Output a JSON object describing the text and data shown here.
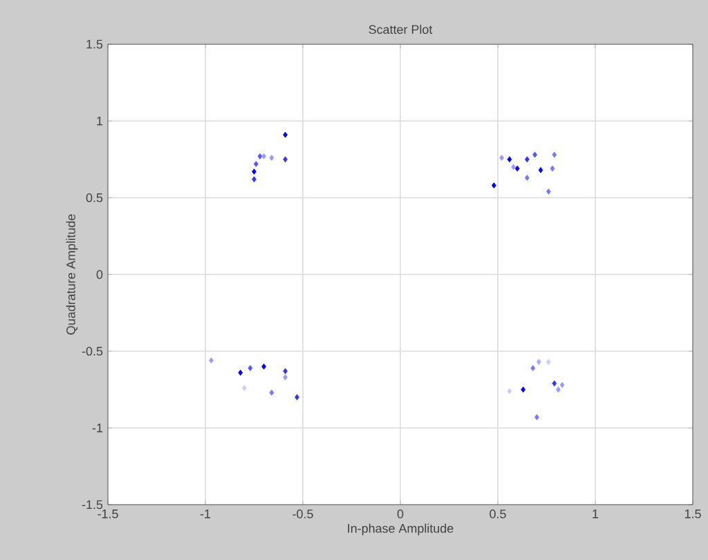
{
  "chart_data": {
    "type": "scatter",
    "title": "Scatter Plot",
    "xlabel": "In-phase Amplitude",
    "ylabel": "Quadrature Amplitude",
    "x": [
      -0.72,
      -0.7,
      -0.66,
      -0.74,
      -0.75,
      -0.75,
      -0.59,
      -0.59,
      0.52,
      0.56,
      0.58,
      0.6,
      0.65,
      0.69,
      0.79,
      0.72,
      0.78,
      0.65,
      0.48,
      0.76,
      -0.97,
      -0.82,
      -0.77,
      -0.7,
      -0.59,
      -0.59,
      -0.8,
      -0.66,
      -0.53,
      0.68,
      0.71,
      0.76,
      0.56,
      0.63,
      0.79,
      0.83,
      0.81,
      0.7
    ],
    "values": [
      0.77,
      0.77,
      0.76,
      0.72,
      0.67,
      0.62,
      0.91,
      0.75,
      0.76,
      0.75,
      0.7,
      0.69,
      0.75,
      0.78,
      0.78,
      0.68,
      0.69,
      0.63,
      0.58,
      0.54,
      -0.56,
      -0.64,
      -0.61,
      -0.6,
      -0.63,
      -0.67,
      -0.74,
      -0.77,
      -0.8,
      -0.61,
      -0.57,
      -0.57,
      -0.76,
      -0.75,
      -0.71,
      -0.72,
      -0.75,
      -0.93
    ],
    "colors": [
      "#5555ff",
      "#9999ff",
      "#9999ff",
      "#5555ff",
      "#0000ff",
      "#3333ff",
      "#0000ff",
      "#3333ff",
      "#9999ff",
      "#0000ff",
      "#9999ff",
      "#0000ff",
      "#3333ff",
      "#5555ff",
      "#7777ff",
      "#0000ff",
      "#7777ff",
      "#7777ff",
      "#0000ff",
      "#7777ff",
      "#9999ff",
      "#0000ff",
      "#5555ff",
      "#0000ff",
      "#3333ff",
      "#9999ff",
      "#ccccff",
      "#7777ff",
      "#3333ff",
      "#7777ff",
      "#aaaaff",
      "#ccccff",
      "#ccccff",
      "#0000ff",
      "#3333ff",
      "#9999ff",
      "#9999ff",
      "#7777ff"
    ],
    "xlim": [
      -1.5,
      1.5
    ],
    "ylim": [
      -1.5,
      1.5
    ],
    "xticks": [
      -1.5,
      -1,
      -0.5,
      0,
      0.5,
      1,
      1.5
    ],
    "yticks": [
      -1.5,
      -1,
      -0.5,
      0,
      0.5,
      1,
      1.5
    ],
    "grid": true,
    "marker": "diamond"
  }
}
